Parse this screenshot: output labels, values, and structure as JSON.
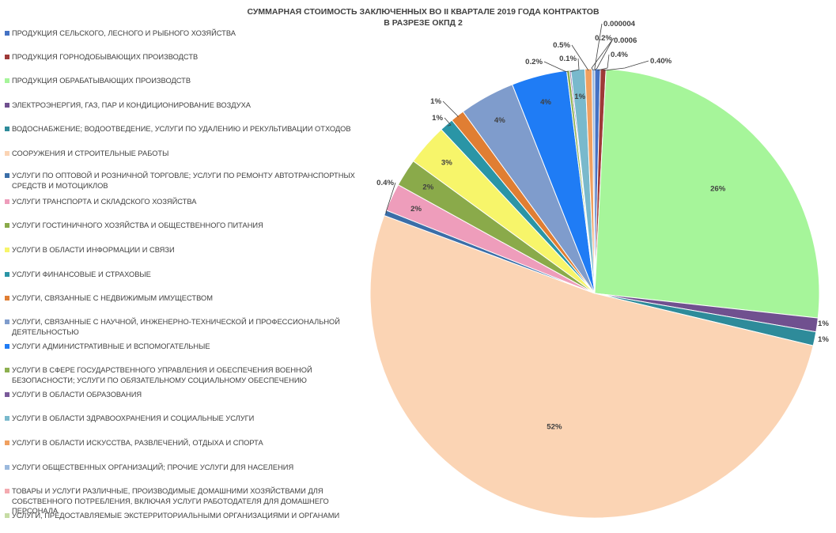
{
  "chart_data": {
    "type": "pie",
    "title": [
      "СУММАРНАЯ СТОИМОСТЬ ЗАКЛЮЧЕННЫХ ВО II КВАРТАЛЕ 2019 ГОДА КОНТРАКТОВ",
      "В РАЗРЕЗЕ ОКПД 2"
    ],
    "legend_position": "left",
    "slices": [
      {
        "name": "Продукция сельского, лесного и рыбного хозяйства",
        "value": 0.4,
        "label": "0.4%",
        "color": "#4472c4"
      },
      {
        "name": "Продукция горнодобывающих производств",
        "value": 0.4,
        "label": "0.40%",
        "color": "#9e3a38"
      },
      {
        "name": "Продукция обрабатывающих производств",
        "value": 26,
        "label": "26%",
        "color": "#a6f59a"
      },
      {
        "name": "Электроэнергия, газ, пар и кондиционирование воздуха",
        "value": 1,
        "label": "1%",
        "color": "#70508f"
      },
      {
        "name": "Водоснабжение; водоотведение, услуги по удалению и рекультивации отходов",
        "value": 1,
        "label": "1%",
        "color": "#2e8b9a"
      },
      {
        "name": "Сооружения и строительные работы",
        "value": 52,
        "label": "52%",
        "color": "#fbd4b4"
      },
      {
        "name": "Услуги по оптовой и розничной торговле; услуги по ремонту автотранспортных средств и мотоциклов",
        "value": 0.4,
        "label": "0.4%",
        "color": "#3b6ea8"
      },
      {
        "name": "Услуги транспорта и складского хозяйства",
        "value": 2,
        "label": "2%",
        "color": "#ee9dbb"
      },
      {
        "name": "Услуги гостиничного хозяйства и общественного питания",
        "value": 2,
        "label": "2%",
        "color": "#8aaa4a"
      },
      {
        "name": "Услуги в области информации и связи",
        "value": 3,
        "label": "3%",
        "color": "#f7f56a"
      },
      {
        "name": "Услуги финансовые и страховые",
        "value": 1,
        "label": "1%",
        "color": "#2a95a6"
      },
      {
        "name": "Услуги, связанные с недвижимым имуществом",
        "value": 1,
        "label": "1%",
        "color": "#e07e33"
      },
      {
        "name": "Услуги, связанные с научной, инженерно-технической и профессиональной деятельностью",
        "value": 4,
        "label": "4%",
        "color": "#7f9ccc"
      },
      {
        "name": "Услуги административные и вспомогательные",
        "value": 4,
        "label": "4%",
        "color": "#1f7cf5"
      },
      {
        "name": "Услуги в сфере государственного управления и обеспечения военной безопасности; услуги по обязательному социальному обеспечению",
        "value": 0.2,
        "label": "0.2%",
        "color": "#8db04f"
      },
      {
        "name": "Услуги в области образования",
        "value": 0.1,
        "label": "0.1%",
        "color": "#7a5a9a"
      },
      {
        "name": "Услуги в области здравоохранения и социальные услуги",
        "value": 1,
        "label": "1%",
        "color": "#79b9cc"
      },
      {
        "name": "Услуги в области искусства, развлечений, отдыха и спорта",
        "value": 0.5,
        "label": "0.5%",
        "color": "#f0a060"
      },
      {
        "name": "Услуги общественных организаций; прочие услуги для населения",
        "value": 0.2,
        "label": "0.2%",
        "color": "#9bb9dd"
      },
      {
        "name": "Товары и услуги различные, производимые домашними хозяйствами для собственного потребления, включая услуги работодателя для домашнего персонала",
        "value": 4e-06,
        "label": "0.000004",
        "color": "#f4aab0"
      },
      {
        "name": "Услуги, предоставляемые экстерриториальными организациями и органами",
        "value": 0.0006,
        "label": "0.0006",
        "color": "#c6dca5"
      }
    ]
  }
}
